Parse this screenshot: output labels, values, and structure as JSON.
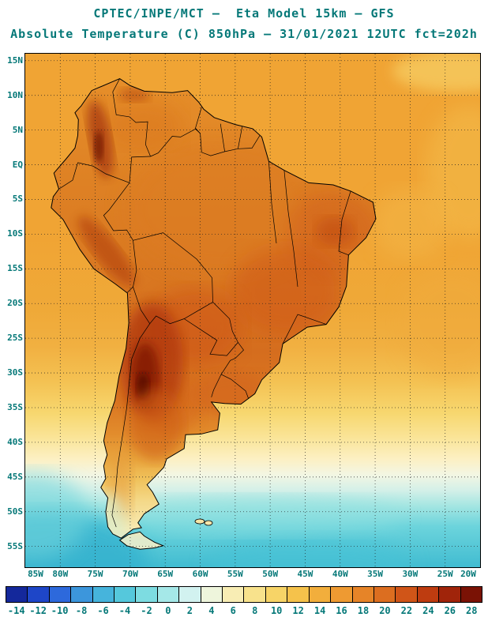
{
  "title": {
    "line1": "CPTEC/INPE/MCT –  Eta Model 15km – GFS",
    "line2": "Absolute Temperature (C) 850hPa – 31/01/2021 12UTC fct=202h"
  },
  "map": {
    "lat_labels": [
      "15N",
      "10N",
      "5N",
      "EQ",
      "5S",
      "10S",
      "15S",
      "20S",
      "25S",
      "30S",
      "35S",
      "40S",
      "45S",
      "50S",
      "55S"
    ],
    "lon_labels": [
      "85W",
      "80W",
      "75W",
      "70W",
      "65W",
      "60W",
      "55W",
      "50W",
      "45W",
      "40W",
      "35W",
      "30W",
      "25W",
      "20W"
    ]
  },
  "colorbar": {
    "unit": "C",
    "labels": [
      "-14",
      "-12",
      "-10",
      "-8",
      "-6",
      "-4",
      "-2",
      "0",
      "2",
      "4",
      "6",
      "8",
      "10",
      "12",
      "14",
      "16",
      "18",
      "20",
      "22",
      "24",
      "26",
      "28"
    ],
    "colors": [
      "#14289b",
      "#1e46c8",
      "#2d69dc",
      "#3c96dc",
      "#46b4dc",
      "#55c8dc",
      "#7ddce1",
      "#a5e8e8",
      "#d2f2f0",
      "#eef5dc",
      "#f8edb4",
      "#f8e28c",
      "#f7d467",
      "#f5c24b",
      "#f2ae3c",
      "#ee9a32",
      "#e68428",
      "#dc6e20",
      "#d05518",
      "#be3c10",
      "#a0240a",
      "#7a1205"
    ]
  },
  "colors": {
    "text_teal": "#057878",
    "frame": "#000000",
    "warm_core": "#7e1404",
    "cold_ocean": "#41bcd1"
  }
}
